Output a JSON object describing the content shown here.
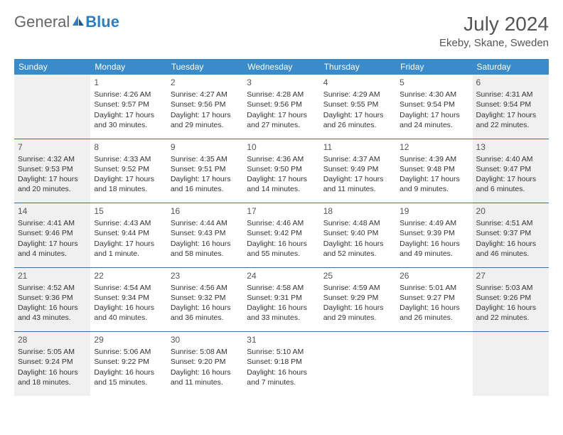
{
  "brand": {
    "part1": "General",
    "part2": "Blue"
  },
  "title": "July 2024",
  "location": "Ekeby, Skane, Sweden",
  "colors": {
    "header_bg": "#3a8bc9",
    "separator": "#3a6ea8",
    "weekend_bg": "#f0f0f0",
    "text": "#333333",
    "muted": "#555555",
    "brand_blue": "#2a7ec2"
  },
  "day_headers": [
    "Sunday",
    "Monday",
    "Tuesday",
    "Wednesday",
    "Thursday",
    "Friday",
    "Saturday"
  ],
  "weeks": [
    [
      {
        "n": "",
        "sr": "",
        "ss": "",
        "dl": "",
        "wk": true
      },
      {
        "n": "1",
        "sr": "Sunrise: 4:26 AM",
        "ss": "Sunset: 9:57 PM",
        "dl": "Daylight: 17 hours and 30 minutes."
      },
      {
        "n": "2",
        "sr": "Sunrise: 4:27 AM",
        "ss": "Sunset: 9:56 PM",
        "dl": "Daylight: 17 hours and 29 minutes."
      },
      {
        "n": "3",
        "sr": "Sunrise: 4:28 AM",
        "ss": "Sunset: 9:56 PM",
        "dl": "Daylight: 17 hours and 27 minutes."
      },
      {
        "n": "4",
        "sr": "Sunrise: 4:29 AM",
        "ss": "Sunset: 9:55 PM",
        "dl": "Daylight: 17 hours and 26 minutes."
      },
      {
        "n": "5",
        "sr": "Sunrise: 4:30 AM",
        "ss": "Sunset: 9:54 PM",
        "dl": "Daylight: 17 hours and 24 minutes."
      },
      {
        "n": "6",
        "sr": "Sunrise: 4:31 AM",
        "ss": "Sunset: 9:54 PM",
        "dl": "Daylight: 17 hours and 22 minutes.",
        "wk": true
      }
    ],
    [
      {
        "n": "7",
        "sr": "Sunrise: 4:32 AM",
        "ss": "Sunset: 9:53 PM",
        "dl": "Daylight: 17 hours and 20 minutes.",
        "wk": true
      },
      {
        "n": "8",
        "sr": "Sunrise: 4:33 AM",
        "ss": "Sunset: 9:52 PM",
        "dl": "Daylight: 17 hours and 18 minutes."
      },
      {
        "n": "9",
        "sr": "Sunrise: 4:35 AM",
        "ss": "Sunset: 9:51 PM",
        "dl": "Daylight: 17 hours and 16 minutes."
      },
      {
        "n": "10",
        "sr": "Sunrise: 4:36 AM",
        "ss": "Sunset: 9:50 PM",
        "dl": "Daylight: 17 hours and 14 minutes."
      },
      {
        "n": "11",
        "sr": "Sunrise: 4:37 AM",
        "ss": "Sunset: 9:49 PM",
        "dl": "Daylight: 17 hours and 11 minutes."
      },
      {
        "n": "12",
        "sr": "Sunrise: 4:39 AM",
        "ss": "Sunset: 9:48 PM",
        "dl": "Daylight: 17 hours and 9 minutes."
      },
      {
        "n": "13",
        "sr": "Sunrise: 4:40 AM",
        "ss": "Sunset: 9:47 PM",
        "dl": "Daylight: 17 hours and 6 minutes.",
        "wk": true
      }
    ],
    [
      {
        "n": "14",
        "sr": "Sunrise: 4:41 AM",
        "ss": "Sunset: 9:46 PM",
        "dl": "Daylight: 17 hours and 4 minutes.",
        "wk": true
      },
      {
        "n": "15",
        "sr": "Sunrise: 4:43 AM",
        "ss": "Sunset: 9:44 PM",
        "dl": "Daylight: 17 hours and 1 minute."
      },
      {
        "n": "16",
        "sr": "Sunrise: 4:44 AM",
        "ss": "Sunset: 9:43 PM",
        "dl": "Daylight: 16 hours and 58 minutes."
      },
      {
        "n": "17",
        "sr": "Sunrise: 4:46 AM",
        "ss": "Sunset: 9:42 PM",
        "dl": "Daylight: 16 hours and 55 minutes."
      },
      {
        "n": "18",
        "sr": "Sunrise: 4:48 AM",
        "ss": "Sunset: 9:40 PM",
        "dl": "Daylight: 16 hours and 52 minutes."
      },
      {
        "n": "19",
        "sr": "Sunrise: 4:49 AM",
        "ss": "Sunset: 9:39 PM",
        "dl": "Daylight: 16 hours and 49 minutes."
      },
      {
        "n": "20",
        "sr": "Sunrise: 4:51 AM",
        "ss": "Sunset: 9:37 PM",
        "dl": "Daylight: 16 hours and 46 minutes.",
        "wk": true
      }
    ],
    [
      {
        "n": "21",
        "sr": "Sunrise: 4:52 AM",
        "ss": "Sunset: 9:36 PM",
        "dl": "Daylight: 16 hours and 43 minutes.",
        "wk": true
      },
      {
        "n": "22",
        "sr": "Sunrise: 4:54 AM",
        "ss": "Sunset: 9:34 PM",
        "dl": "Daylight: 16 hours and 40 minutes."
      },
      {
        "n": "23",
        "sr": "Sunrise: 4:56 AM",
        "ss": "Sunset: 9:32 PM",
        "dl": "Daylight: 16 hours and 36 minutes."
      },
      {
        "n": "24",
        "sr": "Sunrise: 4:58 AM",
        "ss": "Sunset: 9:31 PM",
        "dl": "Daylight: 16 hours and 33 minutes."
      },
      {
        "n": "25",
        "sr": "Sunrise: 4:59 AM",
        "ss": "Sunset: 9:29 PM",
        "dl": "Daylight: 16 hours and 29 minutes."
      },
      {
        "n": "26",
        "sr": "Sunrise: 5:01 AM",
        "ss": "Sunset: 9:27 PM",
        "dl": "Daylight: 16 hours and 26 minutes."
      },
      {
        "n": "27",
        "sr": "Sunrise: 5:03 AM",
        "ss": "Sunset: 9:26 PM",
        "dl": "Daylight: 16 hours and 22 minutes.",
        "wk": true
      }
    ],
    [
      {
        "n": "28",
        "sr": "Sunrise: 5:05 AM",
        "ss": "Sunset: 9:24 PM",
        "dl": "Daylight: 16 hours and 18 minutes.",
        "wk": true
      },
      {
        "n": "29",
        "sr": "Sunrise: 5:06 AM",
        "ss": "Sunset: 9:22 PM",
        "dl": "Daylight: 16 hours and 15 minutes."
      },
      {
        "n": "30",
        "sr": "Sunrise: 5:08 AM",
        "ss": "Sunset: 9:20 PM",
        "dl": "Daylight: 16 hours and 11 minutes."
      },
      {
        "n": "31",
        "sr": "Sunrise: 5:10 AM",
        "ss": "Sunset: 9:18 PM",
        "dl": "Daylight: 16 hours and 7 minutes."
      },
      {
        "n": "",
        "sr": "",
        "ss": "",
        "dl": ""
      },
      {
        "n": "",
        "sr": "",
        "ss": "",
        "dl": ""
      },
      {
        "n": "",
        "sr": "",
        "ss": "",
        "dl": "",
        "wk": true
      }
    ]
  ]
}
